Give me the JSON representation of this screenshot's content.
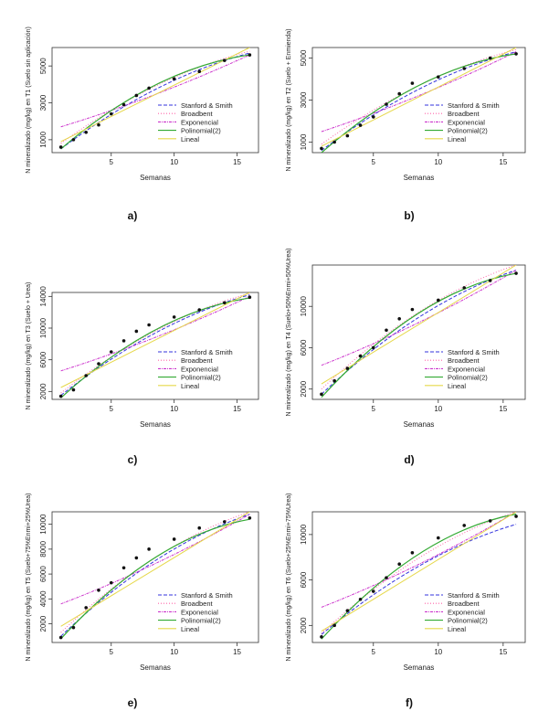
{
  "chart_data": [
    {
      "panel_label": "a)",
      "type": "scatter",
      "xlabel": "Semanas",
      "ylabel": "N mineralizado (mg/kg) en T1 (Suelo sin aplicación)",
      "xlim": [
        0.3,
        16.7
      ],
      "ylim": [
        300,
        6000
      ],
      "xticks": [
        5,
        10,
        15
      ],
      "yticks": [
        1000,
        3000,
        5000
      ],
      "legend": [
        "Stanford & Smith",
        "Broadbent",
        "Exponencial",
        "Polinomial(2)",
        "Lineal"
      ],
      "legend_position": "bottom-right",
      "observed": {
        "x": [
          1,
          2,
          3,
          4,
          5,
          6,
          7,
          8,
          10,
          12,
          14,
          16
        ],
        "y": [
          600,
          1000,
          1400,
          1800,
          2400,
          2900,
          3400,
          3800,
          4300,
          4700,
          5300,
          5600
        ]
      },
      "series": [
        {
          "name": "Stanford & Smith",
          "color": "#3333dd",
          "dash": "4,2",
          "y_start": 500,
          "y_end": 5700
        },
        {
          "name": "Broadbent",
          "color": "#ff66aa",
          "dash": "1,2",
          "y_start": 800,
          "y_end": 5800
        },
        {
          "name": "Exponencial",
          "color": "#cc33cc",
          "dash": "3,1,1,1",
          "y_start": 1700,
          "y_end": 5600
        },
        {
          "name": "Polinomial(2)",
          "color": "#33aa33",
          "dash": "",
          "y_start": 500,
          "y_end": 5600
        },
        {
          "name": "Lineal",
          "color": "#e6d84a",
          "dash": "",
          "y_start": 900,
          "y_end": 6000
        }
      ]
    },
    {
      "panel_label": "b)",
      "type": "scatter",
      "xlabel": "Semanas",
      "ylabel": "N mineralizado (mg/kg) en T2 (Suelo + Enmienda)",
      "xlim": [
        0.3,
        16.7
      ],
      "ylim": [
        500,
        5500
      ],
      "xticks": [
        5,
        10,
        15
      ],
      "yticks": [
        1000,
        3000,
        5000
      ],
      "legend": [
        "Stanford & Smith",
        "Broadbent",
        "Exponencial",
        "Polinomial(2)",
        "Lineal"
      ],
      "legend_position": "bottom-right",
      "observed": {
        "x": [
          1,
          2,
          3,
          4,
          5,
          6,
          7,
          8,
          10,
          12,
          14,
          16
        ],
        "y": [
          700,
          1000,
          1300,
          1800,
          2200,
          2800,
          3300,
          3800,
          4100,
          4500,
          5000,
          5200
        ]
      },
      "series": [
        {
          "name": "Stanford & Smith",
          "color": "#3333dd",
          "dash": "4,2",
          "y_start": 600,
          "y_end": 5300
        },
        {
          "name": "Broadbent",
          "color": "#ff66aa",
          "dash": "1,2",
          "y_start": 900,
          "y_end": 5400
        },
        {
          "name": "Exponencial",
          "color": "#cc33cc",
          "dash": "3,1,1,1",
          "y_start": 1500,
          "y_end": 5300
        },
        {
          "name": "Polinomial(2)",
          "color": "#33aa33",
          "dash": "",
          "y_start": 500,
          "y_end": 5200
        },
        {
          "name": "Lineal",
          "color": "#e6d84a",
          "dash": "",
          "y_start": 800,
          "y_end": 5500
        }
      ]
    },
    {
      "panel_label": "c)",
      "type": "scatter",
      "xlabel": "Semanas",
      "ylabel": "N mineralizado (mg/kg) en T3 (Suelo + Urea)",
      "xlim": [
        0.3,
        16.7
      ],
      "ylim": [
        1000,
        14500
      ],
      "xticks": [
        5,
        10,
        15
      ],
      "yticks": [
        2000,
        6000,
        10000,
        14000
      ],
      "legend": [
        "Stanford & Smith",
        "Broadbent",
        "Exponencial",
        "Polinomial(2)",
        "Lineal"
      ],
      "legend_position": "bottom-right",
      "observed": {
        "x": [
          1,
          2,
          3,
          4,
          5,
          6,
          7,
          8,
          10,
          12,
          14,
          16
        ],
        "y": [
          1400,
          2200,
          4000,
          5500,
          7000,
          8400,
          9600,
          10400,
          11400,
          12300,
          13200,
          13900
        ]
      },
      "series": [
        {
          "name": "Stanford & Smith",
          "color": "#3333dd",
          "dash": "4,2",
          "y_start": 1500,
          "y_end": 14200
        },
        {
          "name": "Broadbent",
          "color": "#ff66aa",
          "dash": "1,2",
          "y_start": 1800,
          "y_end": 14400
        },
        {
          "name": "Exponencial",
          "color": "#cc33cc",
          "dash": "3,1,1,1",
          "y_start": 4600,
          "y_end": 14000
        },
        {
          "name": "Polinomial(2)",
          "color": "#33aa33",
          "dash": "",
          "y_start": 1200,
          "y_end": 13800
        },
        {
          "name": "Lineal",
          "color": "#e6d84a",
          "dash": "",
          "y_start": 2500,
          "y_end": 14500
        }
      ]
    },
    {
      "panel_label": "d)",
      "type": "scatter",
      "xlabel": "Semanas",
      "ylabel": "N mineralizado (mg/kg) en T4 (Suelo+50%Enmi+50%Urea)",
      "xlim": [
        0.3,
        16.7
      ],
      "ylim": [
        1000,
        14000
      ],
      "xticks": [
        5,
        10,
        15
      ],
      "yticks": [
        2000,
        6000,
        10000
      ],
      "legend": [
        "Stanford & Smith",
        "Broadbent",
        "Exponencial",
        "Polinomial(2)",
        "Lineal"
      ],
      "legend_position": "bottom-right",
      "observed": {
        "x": [
          1,
          2,
          3,
          4,
          5,
          6,
          7,
          8,
          10,
          12,
          14,
          16
        ],
        "y": [
          1500,
          2800,
          4000,
          5200,
          6000,
          7700,
          8800,
          9700,
          10600,
          11800,
          12500,
          13200
        ]
      },
      "series": [
        {
          "name": "Stanford & Smith",
          "color": "#3333dd",
          "dash": "4,2",
          "y_start": 1500,
          "y_end": 13500
        },
        {
          "name": "Broadbent",
          "color": "#ff66aa",
          "dash": "1,2",
          "y_start": 2000,
          "y_end": 14000
        },
        {
          "name": "Exponencial",
          "color": "#cc33cc",
          "dash": "3,1,1,1",
          "y_start": 4300,
          "y_end": 13500
        },
        {
          "name": "Polinomial(2)",
          "color": "#33aa33",
          "dash": "",
          "y_start": 1200,
          "y_end": 13200
        },
        {
          "name": "Lineal",
          "color": "#e6d84a",
          "dash": "",
          "y_start": 2500,
          "y_end": 14000
        }
      ]
    },
    {
      "panel_label": "e)",
      "type": "scatter",
      "xlabel": "Semanas",
      "ylabel": "N mineralizado (mg/kg) en T5 (Suelo+75%Enmi+25%Urea)",
      "xlim": [
        0.3,
        16.7
      ],
      "ylim": [
        500,
        11000
      ],
      "xticks": [
        5,
        10,
        15
      ],
      "yticks": [
        2000,
        4000,
        6000,
        8000,
        10000
      ],
      "legend": [
        "Stanford & Smith",
        "Broadbent",
        "Exponencial",
        "Polinomial(2)",
        "Lineal"
      ],
      "legend_position": "bottom-right",
      "observed": {
        "x": [
          1,
          2,
          3,
          4,
          5,
          6,
          7,
          8,
          10,
          12,
          14,
          16
        ],
        "y": [
          900,
          1700,
          3300,
          4700,
          5300,
          6500,
          7300,
          8000,
          8800,
          9700,
          10200,
          10500
        ]
      },
      "series": [
        {
          "name": "Stanford & Smith",
          "color": "#3333dd",
          "dash": "4,2",
          "y_start": 1000,
          "y_end": 10800
        },
        {
          "name": "Broadbent",
          "color": "#ff66aa",
          "dash": "1,2",
          "y_start": 1300,
          "y_end": 11000
        },
        {
          "name": "Exponencial",
          "color": "#cc33cc",
          "dash": "3,1,1,1",
          "y_start": 3600,
          "y_end": 10800
        },
        {
          "name": "Polinomial(2)",
          "color": "#33aa33",
          "dash": "",
          "y_start": 800,
          "y_end": 10400
        },
        {
          "name": "Lineal",
          "color": "#e6d84a",
          "dash": "",
          "y_start": 1800,
          "y_end": 11000
        }
      ]
    },
    {
      "panel_label": "f)",
      "type": "scatter",
      "xlabel": "Semanas",
      "ylabel": "N mineralizado (mg/kg) en T6 (Suelo+25%Enmi+75%Urea)",
      "xlim": [
        0.3,
        16.7
      ],
      "ylim": [
        500,
        12000
      ],
      "xticks": [
        5,
        10,
        15
      ],
      "yticks": [
        2000,
        6000,
        10000
      ],
      "legend": [
        "Stanford & Smith",
        "Broadbent",
        "Exponencial",
        "Polinomial(2)",
        "Lineal"
      ],
      "legend_position": "bottom-right",
      "observed": {
        "x": [
          1,
          2,
          3,
          4,
          5,
          6,
          7,
          8,
          10,
          12,
          14,
          16
        ],
        "y": [
          1000,
          2000,
          3300,
          4300,
          5000,
          6200,
          7400,
          8400,
          9700,
          10800,
          11200,
          11600
        ]
      },
      "series": [
        {
          "name": "Stanford & Smith",
          "color": "#3333dd",
          "dash": "4,2",
          "y_start": 1200,
          "y_end": 10900
        },
        {
          "name": "Broadbent",
          "color": "#ff66aa",
          "dash": "1,2",
          "y_start": 1300,
          "y_end": 12000
        },
        {
          "name": "Exponencial",
          "color": "#cc33cc",
          "dash": "3,1,1,1",
          "y_start": 3600,
          "y_end": 12000
        },
        {
          "name": "Polinomial(2)",
          "color": "#33aa33",
          "dash": "",
          "y_start": 800,
          "y_end": 11800
        },
        {
          "name": "Lineal",
          "color": "#e6d84a",
          "dash": "",
          "y_start": 1500,
          "y_end": 12000
        }
      ]
    }
  ]
}
